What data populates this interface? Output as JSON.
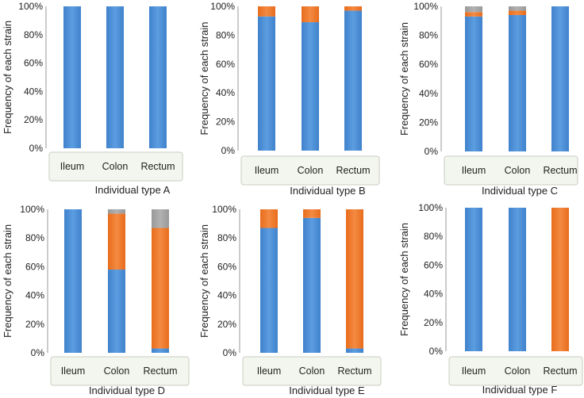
{
  "colors": {
    "series_blue": "#4a8ed6",
    "series_orange": "#f07a2c",
    "series_gray": "#a3a3a3",
    "axis_box_fill": "#f3f6ee",
    "axis_box_stroke": "#c9cec2",
    "text": "#222222"
  },
  "chart_data": [
    {
      "type": "bar",
      "stacked": true,
      "title": "Individual type A",
      "ylabel": "Frequency of each strain",
      "categories": [
        "Ileum",
        "Colon",
        "Rectum"
      ],
      "yticks": [
        "0%",
        "20%",
        "40%",
        "60%",
        "80%",
        "100%"
      ],
      "ylim": [
        0,
        100
      ],
      "series": [
        {
          "name": "blue",
          "values": [
            100,
            100,
            100
          ]
        },
        {
          "name": "orange",
          "values": [
            0,
            0,
            0
          ]
        },
        {
          "name": "gray",
          "values": [
            0,
            0,
            0
          ]
        }
      ]
    },
    {
      "type": "bar",
      "stacked": true,
      "title": "Individual type B",
      "ylabel": "Frequency of each strain",
      "categories": [
        "Ileum",
        "Colon",
        "Rectum"
      ],
      "yticks": [
        "0%",
        "20%",
        "40%",
        "60%",
        "80%",
        "100%"
      ],
      "ylim": [
        0,
        100
      ],
      "series": [
        {
          "name": "blue",
          "values": [
            93,
            89,
            97
          ]
        },
        {
          "name": "orange",
          "values": [
            7,
            11,
            3
          ]
        },
        {
          "name": "gray",
          "values": [
            0,
            0,
            0
          ]
        }
      ]
    },
    {
      "type": "bar",
      "stacked": true,
      "title": "Individual type C",
      "ylabel": "Frequency of each strain",
      "categories": [
        "Ileum",
        "Colon",
        "Rectum"
      ],
      "yticks": [
        "0%",
        "20%",
        "40%",
        "60%",
        "80%",
        "100%"
      ],
      "ylim": [
        0,
        100
      ],
      "series": [
        {
          "name": "blue",
          "values": [
            93,
            94,
            100
          ]
        },
        {
          "name": "orange",
          "values": [
            3,
            3,
            0
          ]
        },
        {
          "name": "gray",
          "values": [
            4,
            3,
            0
          ]
        }
      ]
    },
    {
      "type": "bar",
      "stacked": true,
      "title": "Individual type D",
      "ylabel": "Frequency of each strain",
      "categories": [
        "Ileum",
        "Colon",
        "Rectum"
      ],
      "yticks": [
        "0%",
        "20%",
        "40%",
        "60%",
        "80%",
        "100%"
      ],
      "ylim": [
        0,
        100
      ],
      "series": [
        {
          "name": "blue",
          "values": [
            100,
            58,
            3
          ]
        },
        {
          "name": "orange",
          "values": [
            0,
            39,
            84
          ]
        },
        {
          "name": "gray",
          "values": [
            0,
            3,
            13
          ]
        }
      ]
    },
    {
      "type": "bar",
      "stacked": true,
      "title": "Individual type E",
      "ylabel": "Frequency of each strain",
      "categories": [
        "Ileum",
        "Colon",
        "Rectum"
      ],
      "yticks": [
        "0%",
        "20%",
        "40%",
        "60%",
        "80%",
        "100%"
      ],
      "ylim": [
        0,
        100
      ],
      "series": [
        {
          "name": "blue",
          "values": [
            87,
            94,
            3
          ]
        },
        {
          "name": "orange",
          "values": [
            13,
            6,
            97
          ]
        },
        {
          "name": "gray",
          "values": [
            0,
            0,
            0
          ]
        }
      ]
    },
    {
      "type": "bar",
      "stacked": true,
      "title": "Individual type F",
      "ylabel": "Frequency of each strain",
      "categories": [
        "Ileum",
        "Colon",
        "Rectum"
      ],
      "yticks": [
        "0%",
        "20%",
        "40%",
        "60%",
        "80%",
        "100%"
      ],
      "ylim": [
        0,
        100
      ],
      "series": [
        {
          "name": "blue",
          "values": [
            100,
            100,
            0
          ]
        },
        {
          "name": "orange",
          "values": [
            0,
            0,
            100
          ]
        },
        {
          "name": "gray",
          "values": [
            0,
            0,
            0
          ]
        }
      ]
    }
  ]
}
